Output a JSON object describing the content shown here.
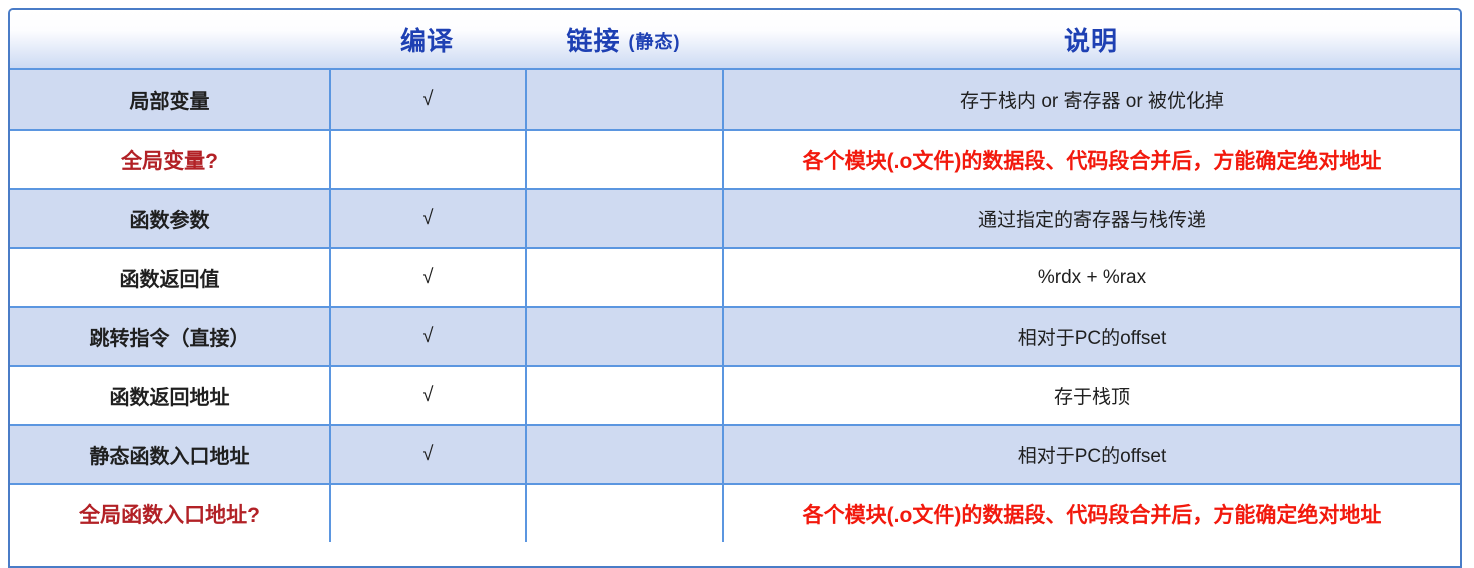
{
  "table": {
    "header": {
      "col_label": "",
      "col_compile": "编译",
      "col_link": "链接",
      "col_link_sub": "(静态)",
      "col_description": "说明"
    },
    "check_symbol": "√",
    "rows": [
      {
        "label": "局部变量",
        "compile": "√",
        "link": "",
        "description": "存于栈内 or 寄存器 or 被优化掉",
        "highlight": false
      },
      {
        "label": "全局变量?",
        "compile": "",
        "link": "",
        "description": "各个模块(.o文件)的数据段、代码段合并后，方能确定绝对地址",
        "highlight": true
      },
      {
        "label": "函数参数",
        "compile": "√",
        "link": "",
        "description": "通过指定的寄存器与栈传递",
        "highlight": false
      },
      {
        "label": "函数返回值",
        "compile": "√",
        "link": "",
        "description": "%rdx + %rax",
        "highlight": false
      },
      {
        "label": "跳转指令（直接）",
        "compile": "√",
        "link": "",
        "description": "相对于PC的offset",
        "highlight": false
      },
      {
        "label": "函数返回地址",
        "compile": "√",
        "link": "",
        "description": "存于栈顶",
        "highlight": false
      },
      {
        "label": "静态函数入口地址",
        "compile": "√",
        "link": "",
        "description": "相对于PC的offset",
        "highlight": false
      },
      {
        "label": "全局函数入口地址?",
        "compile": "",
        "link": "",
        "description": "各个模块(.o文件)的数据段、代码段合并后，方能确定绝对地址",
        "highlight": true
      }
    ],
    "colors": {
      "header_text": "#1e40b3",
      "outer_border": "#4a7cc7",
      "grid_line": "#5b96e0",
      "shaded_row_bg": "#cfdaf1",
      "plain_row_bg": "#ffffff",
      "highlight_label": "#b22126",
      "highlight_desc": "#f2190d",
      "body_text": "#1f1f1f"
    }
  }
}
